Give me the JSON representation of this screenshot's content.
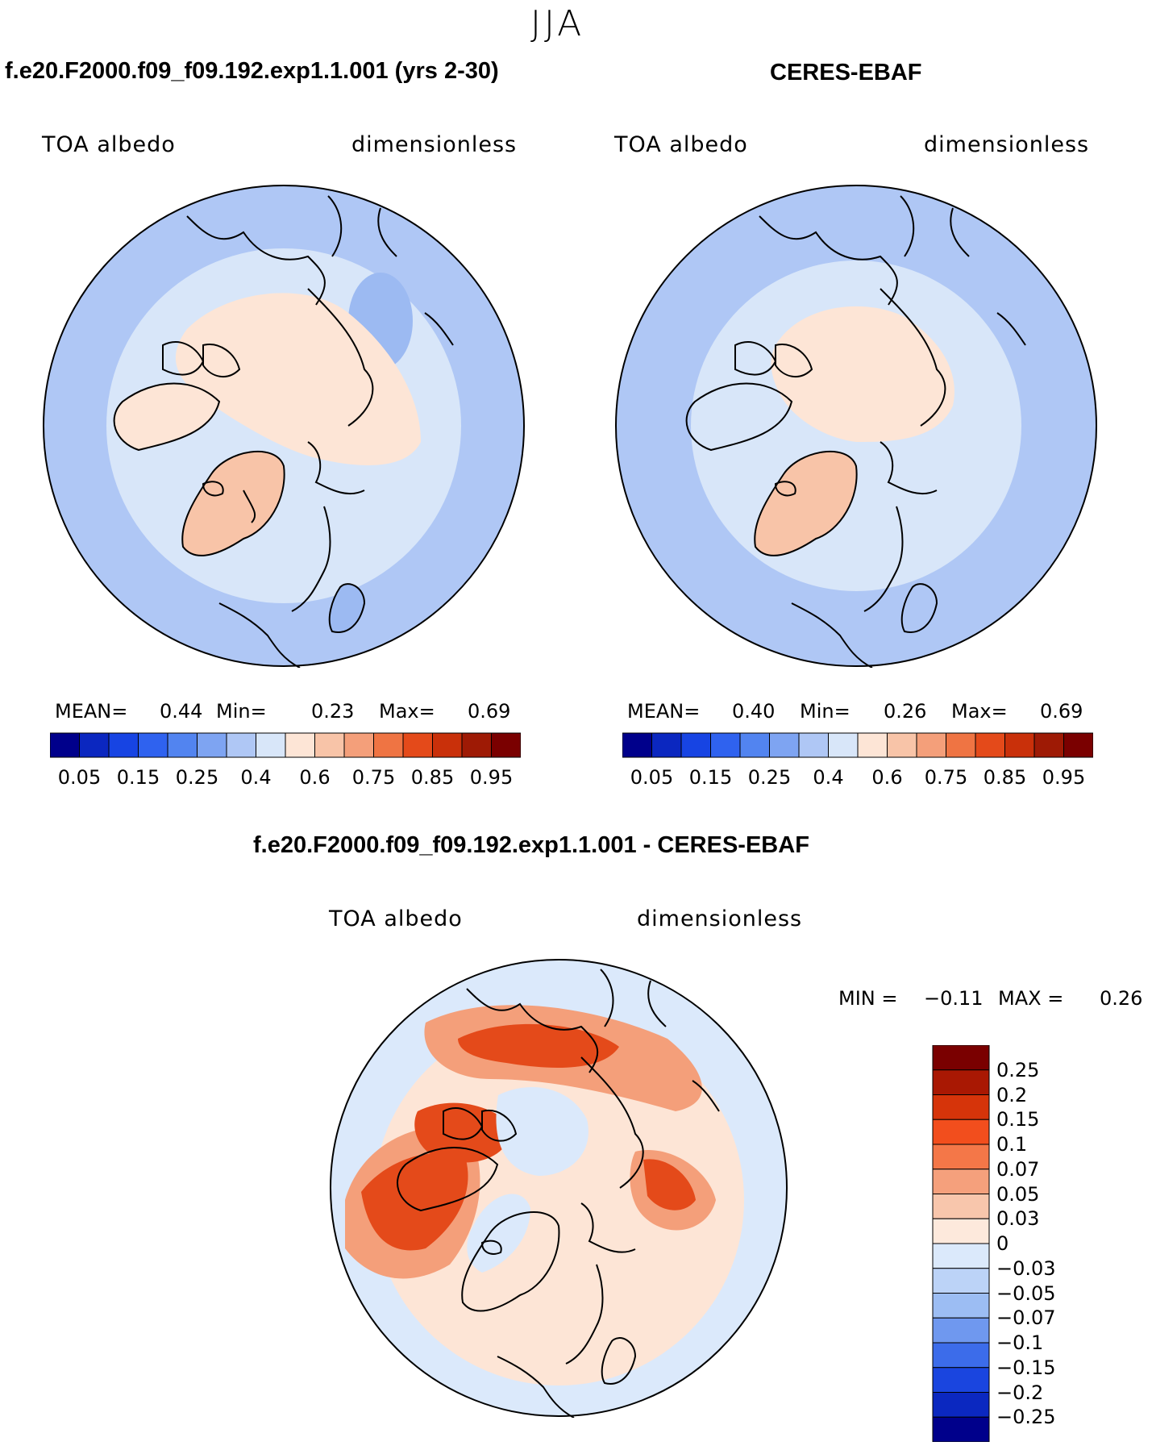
{
  "title": "JJA",
  "panels": [
    {
      "name": "model",
      "header": "f.e20.F2000.f09_f09.192.exp1.1.001 (yrs 2-30)",
      "variable": "TOA albedo",
      "units": "dimensionless",
      "stats": {
        "mean_label": "MEAN=",
        "mean": "0.44",
        "min_label": "Min=",
        "min": "0.23",
        "max_label": "Max=",
        "max": "0.69"
      }
    },
    {
      "name": "obs",
      "header": "CERES-EBAF",
      "variable": "TOA albedo",
      "units": "dimensionless",
      "stats": {
        "mean_label": "MEAN=",
        "mean": "0.40",
        "min_label": "Min=",
        "min": "0.26",
        "max_label": "Max=",
        "max": "0.69"
      }
    },
    {
      "name": "diff",
      "header": "f.e20.F2000.f09_f09.192.exp1.1.001 - CERES-EBAF",
      "variable": "TOA albedo",
      "units": "dimensionless",
      "stats": {
        "min_label": "MIN =",
        "min": "−0.11",
        "max_label": "MAX =",
        "max": "0.26"
      }
    }
  ],
  "abs_colorbar": {
    "colors": [
      "#00008b",
      "#0b27c0",
      "#1744e3",
      "#2f62ef",
      "#5284f0",
      "#7ea4f2",
      "#afc7f5",
      "#d8e6f9",
      "#fde5d6",
      "#f8c4a8",
      "#f49f7a",
      "#ef7443",
      "#e44a1a",
      "#c9300a",
      "#9e1a05",
      "#7a0000"
    ],
    "tick_labels": [
      "0.05",
      "0.15",
      "0.25",
      "0.4",
      "0.6",
      "0.75",
      "0.85",
      "0.95"
    ]
  },
  "diff_colorbar": {
    "colors": [
      "#7a0000",
      "#a91803",
      "#d6340a",
      "#f24e1d",
      "#f47748",
      "#f5a07c",
      "#f8c6ac",
      "#fde9dc",
      "#dbe9fb",
      "#bcd3f7",
      "#9cbdf3",
      "#6f98ef",
      "#3c6cea",
      "#1a45df",
      "#0b28c0",
      "#00008b"
    ],
    "tick_labels": [
      "0.25",
      "0.2",
      "0.15",
      "0.1",
      "0.07",
      "0.05",
      "0.03",
      "0",
      "−0.03",
      "−0.05",
      "−0.07",
      "−0.1",
      "−0.15",
      "−0.2",
      "−0.25"
    ]
  },
  "map_colors": {
    "ocean_low": "#afc7f5",
    "ocean_mid": "#d8e6f9",
    "ocean_edge": "#9cbaf2",
    "ice_high": "#fde5d6",
    "land_high": "#f8c4a8",
    "diff_pos_strong": "#e44a1a",
    "diff_pos_mid": "#f49f7a",
    "diff_pos_weak": "#fde5d6",
    "diff_neg": "#dbe9fb"
  }
}
